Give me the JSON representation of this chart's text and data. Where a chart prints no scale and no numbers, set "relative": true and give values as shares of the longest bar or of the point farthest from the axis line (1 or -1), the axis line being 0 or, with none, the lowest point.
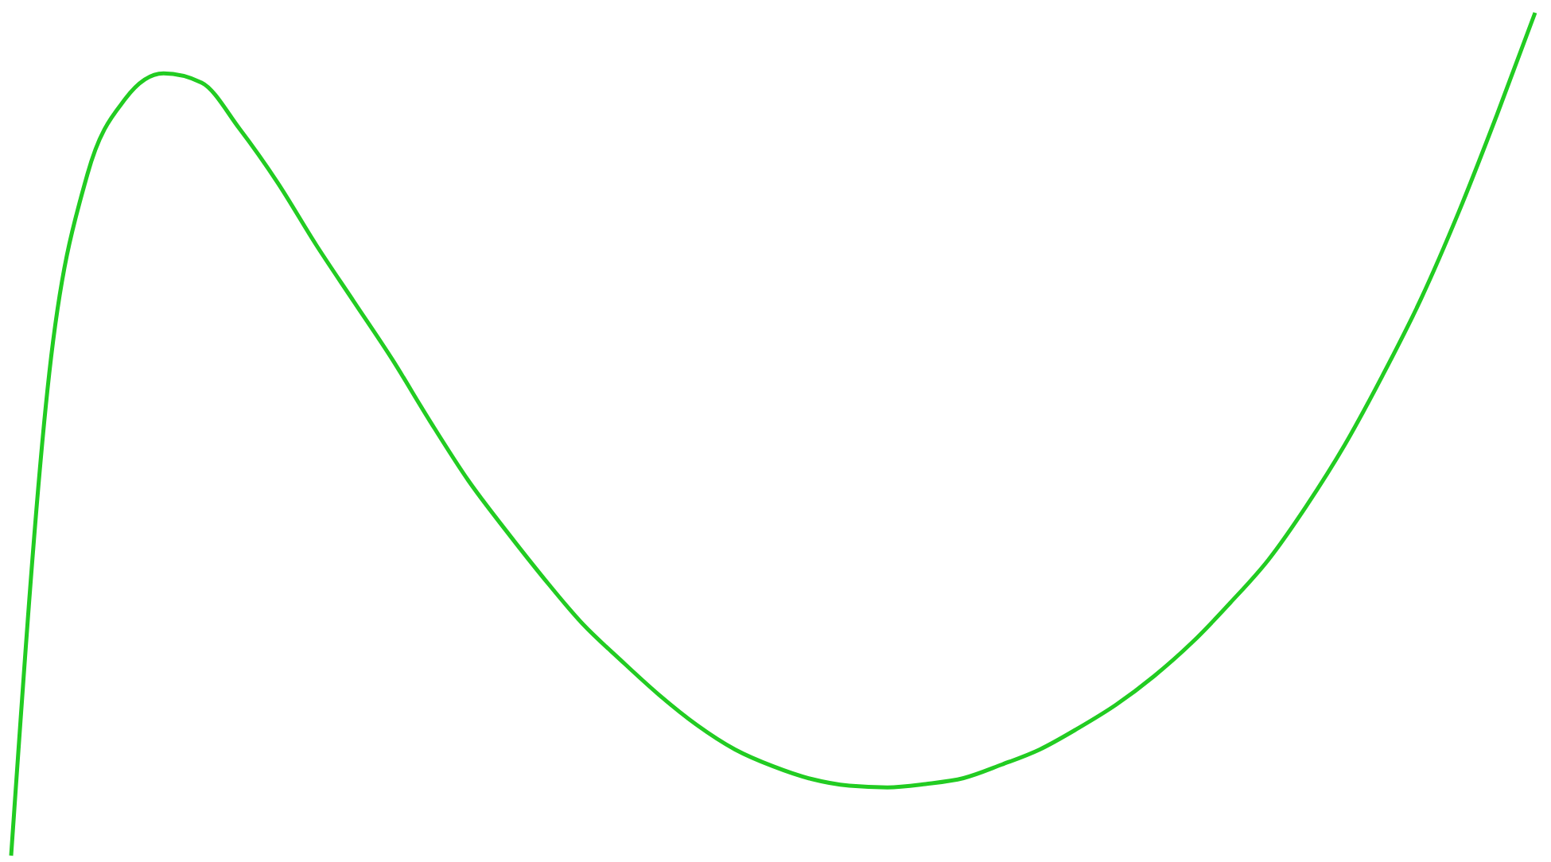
{
  "chart_data": {
    "type": "line",
    "relative": true,
    "categories": [
      null,
      null,
      null,
      null,
      null,
      null,
      null,
      null,
      null,
      null,
      null,
      null,
      null,
      null,
      null,
      null,
      null,
      null,
      null,
      null,
      null,
      null,
      null,
      null,
      null,
      null,
      null,
      null,
      null,
      null,
      null,
      null,
      null,
      null,
      null,
      null,
      null,
      null,
      null,
      null,
      null
    ],
    "series": [
      {
        "color": "#22cc22",
        "values": [
          0,
          0.572,
          0.808,
          0.898,
          0.928,
          0.917,
          0.862,
          0.798,
          0.725,
          0.657,
          0.589,
          0.515,
          0.445,
          0.385,
          0.328,
          0.275,
          0.232,
          0.191,
          0.155,
          0.126,
          0.106,
          0.091,
          0.083,
          0.081,
          0.085,
          0.092,
          0.108,
          0.126,
          0.151,
          0.179,
          0.213,
          0.253,
          0.3,
          0.351,
          0.415,
          0.487,
          0.57,
          0.66,
          0.764,
          0.879,
          1
        ]
      }
    ],
    "marker": "none",
    "line_style": "solid"
  }
}
